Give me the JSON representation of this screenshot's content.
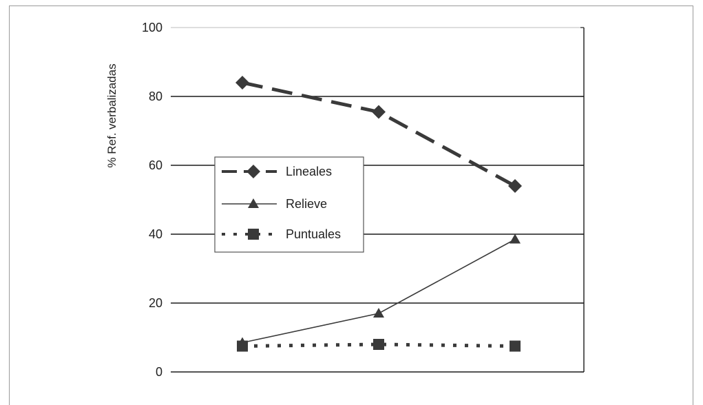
{
  "chart_data": {
    "type": "line",
    "title": "",
    "xlabel": "",
    "ylabel": "% Ref. verbalizadas",
    "ylim": [
      0,
      100
    ],
    "yticks": [
      0,
      20,
      40,
      60,
      80,
      100
    ],
    "x": [
      1,
      2,
      3
    ],
    "grid": "horizontal",
    "legend_position": "center-left",
    "series": [
      {
        "name": "Lineales",
        "values": [
          84,
          75.5,
          54
        ],
        "marker": "diamond",
        "line": "long-dash",
        "color": "#3a3a3a"
      },
      {
        "name": "Relieve",
        "values": [
          8.5,
          17,
          38.5
        ],
        "marker": "triangle",
        "line": "solid",
        "color": "#3a3a3a"
      },
      {
        "name": "Puntuales",
        "values": [
          7.5,
          8,
          7.5
        ],
        "marker": "square",
        "line": "dotted",
        "color": "#3a3a3a"
      }
    ]
  }
}
